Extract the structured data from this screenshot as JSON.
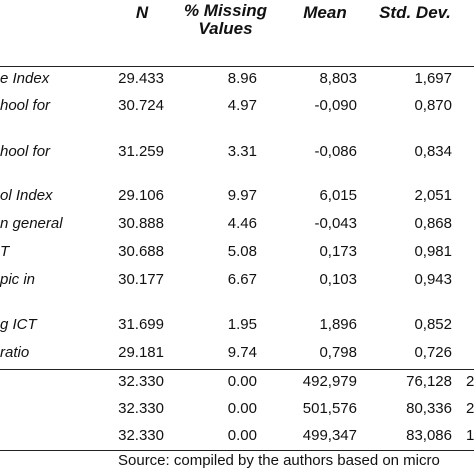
{
  "table": {
    "headers": {
      "n": "N",
      "missing": "% Missing Values",
      "mean": "Mean",
      "sd": "Std. Dev."
    },
    "rows": [
      {
        "label": "e Index",
        "n": "29.433",
        "missing": "8.96",
        "mean": "8,803",
        "sd": "1,697",
        "extra": ""
      },
      {
        "label": "hool for",
        "n": "30.724",
        "missing": "4.97",
        "mean": "-0,090",
        "sd": "0,870",
        "extra": ""
      },
      {
        "label": "hool for",
        "n": "31.259",
        "missing": "3.31",
        "mean": "-0,086",
        "sd": "0,834",
        "extra": ""
      },
      {
        "label": "ol Index",
        "n": "29.106",
        "missing": "9.97",
        "mean": "6,015",
        "sd": "2,051",
        "extra": ""
      },
      {
        "label": "n general",
        "n": "30.888",
        "missing": "4.46",
        "mean": "-0,043",
        "sd": "0,868",
        "extra": ""
      },
      {
        "label": "T",
        "n": "30.688",
        "missing": "5.08",
        "mean": "0,173",
        "sd": "0,981",
        "extra": ""
      },
      {
        "label": "pic in",
        "n": "30.177",
        "missing": "6.67",
        "mean": "0,103",
        "sd": "0,943",
        "extra": ""
      },
      {
        "label": "g ICT",
        "n": "31.699",
        "missing": "1.95",
        "mean": "1,896",
        "sd": "0,852",
        "extra": ""
      },
      {
        "label": "ratio",
        "n": "29.181",
        "missing": "9.74",
        "mean": "0,798",
        "sd": "0,726",
        "extra": ""
      },
      {
        "label": "",
        "n": "32.330",
        "missing": "0.00",
        "mean": "492,979",
        "sd": "76,128",
        "extra": "2"
      },
      {
        "label": "",
        "n": "32.330",
        "missing": "0.00",
        "mean": "501,576",
        "sd": "80,336",
        "extra": "2"
      },
      {
        "label": "",
        "n": "32.330",
        "missing": "0.00",
        "mean": "499,347",
        "sd": "83,086",
        "extra": "1"
      }
    ],
    "source": "Source: compiled by the authors based on micro"
  }
}
